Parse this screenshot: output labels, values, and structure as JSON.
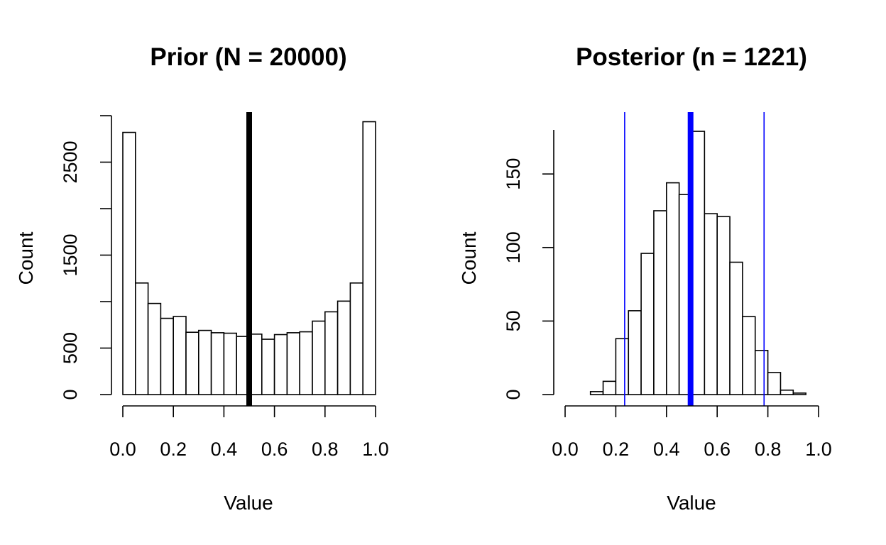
{
  "chart_data": [
    {
      "type": "bar",
      "title": "Prior (N = 20000)",
      "xlabel": "Value",
      "ylabel": "Count",
      "xlim": [
        0,
        1
      ],
      "ylim": [
        0,
        3000
      ],
      "xticks": [
        "0.0",
        "0.2",
        "0.4",
        "0.6",
        "0.8",
        "1.0"
      ],
      "yticks": [
        "0",
        "500",
        "1500",
        "2500"
      ],
      "bin_width": 0.05,
      "bin_starts": [
        0.0,
        0.05,
        0.1,
        0.15,
        0.2,
        0.25,
        0.3,
        0.35,
        0.4,
        0.45,
        0.5,
        0.55,
        0.6,
        0.65,
        0.7,
        0.75,
        0.8,
        0.85,
        0.9,
        0.95
      ],
      "values": [
        2820,
        1200,
        980,
        820,
        840,
        670,
        690,
        665,
        660,
        625,
        650,
        595,
        645,
        665,
        675,
        790,
        890,
        1005,
        1200,
        2935
      ],
      "vlines": [
        {
          "x": 0.5,
          "color": "#000000",
          "weight": "thick"
        }
      ],
      "grid": false,
      "legend": "none"
    },
    {
      "type": "bar",
      "title": "Posterior (n = 1221)",
      "xlabel": "Value",
      "ylabel": "Count",
      "xlim": [
        0,
        1
      ],
      "ylim": [
        0,
        180
      ],
      "xticks": [
        "0.0",
        "0.2",
        "0.4",
        "0.6",
        "0.8",
        "1.0"
      ],
      "yticks": [
        "0",
        "50",
        "100",
        "150"
      ],
      "bin_width": 0.05,
      "bin_starts": [
        0.1,
        0.15,
        0.2,
        0.25,
        0.3,
        0.35,
        0.4,
        0.45,
        0.5,
        0.55,
        0.6,
        0.65,
        0.7,
        0.75,
        0.8,
        0.85,
        0.9
      ],
      "values": [
        2,
        9,
        38,
        57,
        96,
        125,
        144,
        136,
        179,
        123,
        121,
        90,
        53,
        30,
        15,
        3,
        1
      ],
      "vlines": [
        {
          "x": 0.235,
          "color": "#0000ff",
          "weight": "thin"
        },
        {
          "x": 0.495,
          "color": "#0000ff",
          "weight": "thick"
        },
        {
          "x": 0.785,
          "color": "#0000ff",
          "weight": "thin"
        }
      ],
      "grid": false,
      "legend": "none"
    }
  ]
}
